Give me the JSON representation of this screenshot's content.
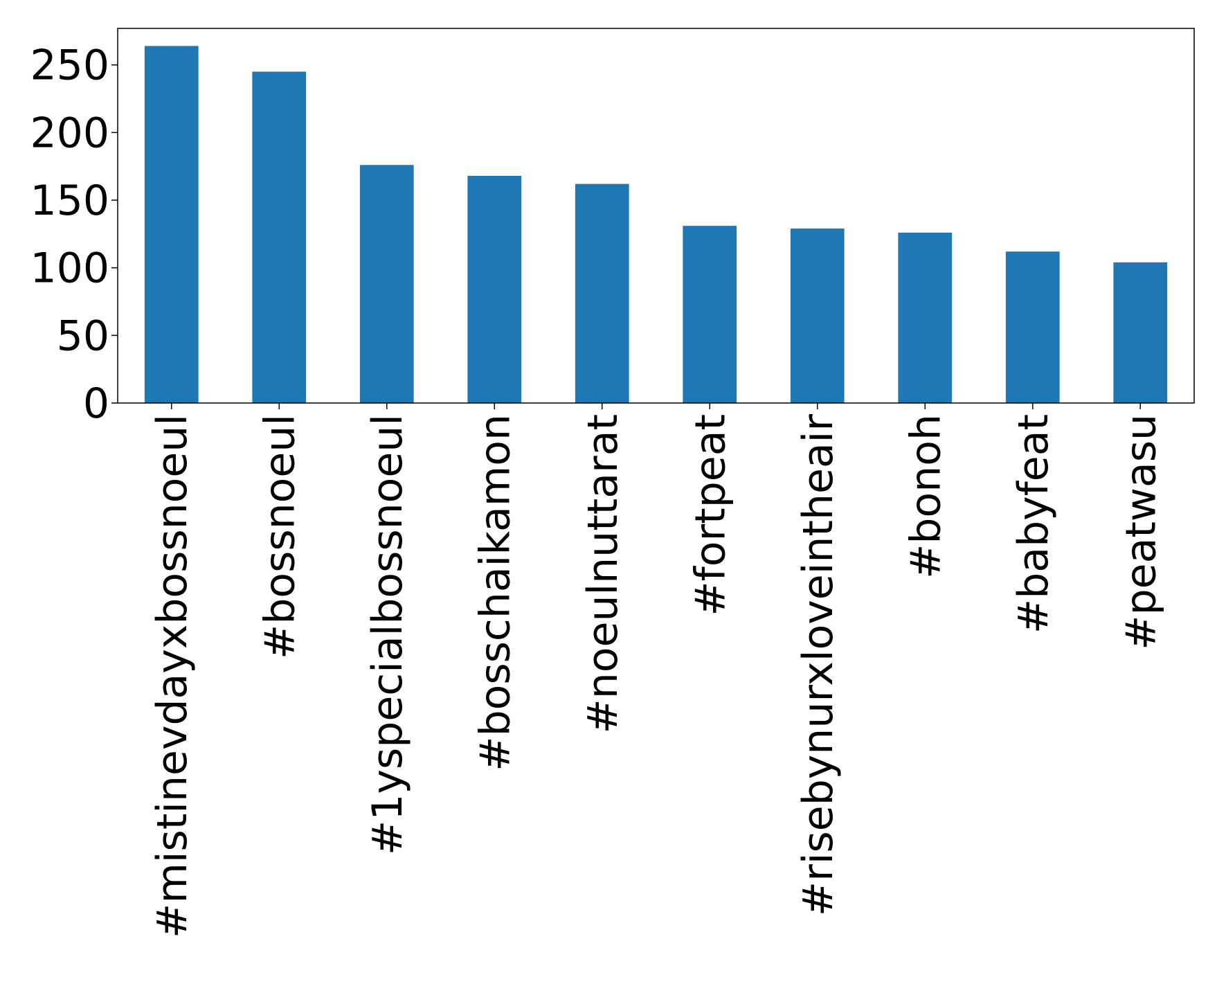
{
  "chart_data": {
    "type": "bar",
    "categories": [
      "#mistinevdayxbossnoeul",
      "#bossnoeul",
      "#1yspecialbossnoeul",
      "#bosschaikamon",
      "#noeulnuttarat",
      "#fortpeat",
      "#risebynurxloveintheair",
      "#bonoh",
      "#babyfeat",
      "#peatwasu"
    ],
    "values": [
      264,
      245,
      176,
      168,
      162,
      131,
      129,
      126,
      112,
      104
    ],
    "ylim": [
      0,
      277
    ],
    "yticks": [
      0,
      50,
      100,
      150,
      200,
      250
    ],
    "title": "",
    "xlabel": "",
    "ylabel": "",
    "grid": false,
    "legend": "none",
    "bar_color": "#1f77b4"
  }
}
